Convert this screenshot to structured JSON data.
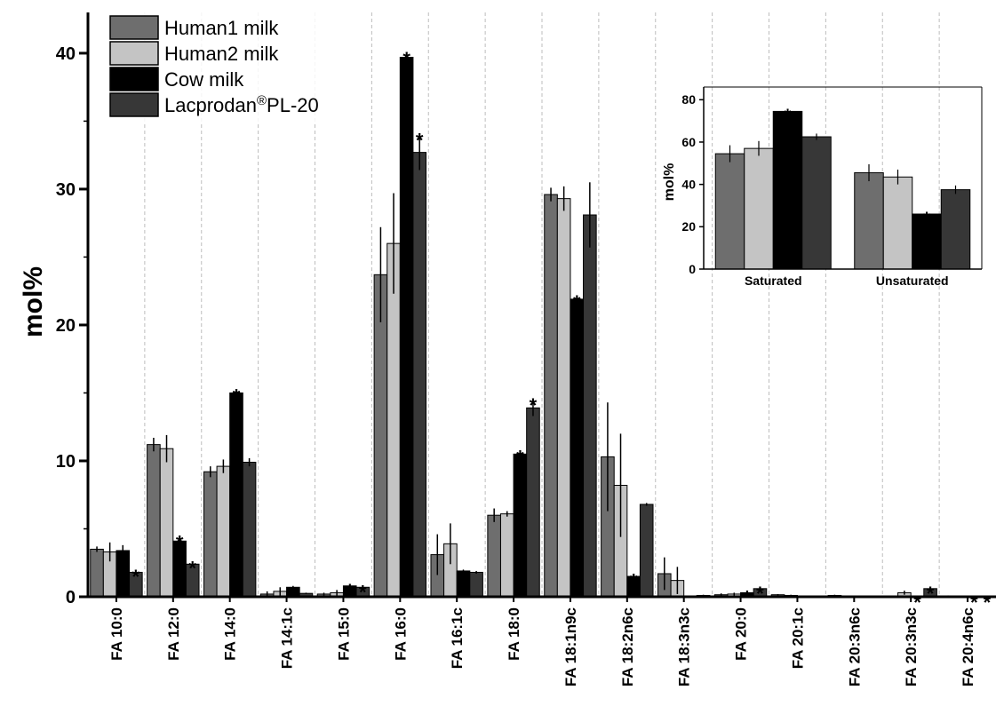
{
  "chart_data": [
    {
      "type": "bar",
      "ylabel": "mol%",
      "xlabel": "",
      "ylim": [
        0,
        43
      ],
      "yticks": [
        0,
        10,
        20,
        30,
        40
      ],
      "grid": "vertical dashed",
      "legend_position": "top-left",
      "categories": [
        "FA 10:0",
        "FA 12:0",
        "FA 14:0",
        "FA 14:1c",
        "FA 15:0",
        "FA 16:0",
        "FA 16:1c",
        "FA 18:0",
        "FA 18:1n9c",
        "FA 18:2n6c",
        "FA 18:3n3c",
        "FA 20:0",
        "FA 20:1c",
        "FA 20:3n6c",
        "FA 20:3n3c",
        "FA 20:4n6c"
      ],
      "series": [
        {
          "name": "Human1 milk",
          "color": "#6e6e6e",
          "values": [
            3.5,
            11.2,
            9.2,
            0.2,
            0.2,
            23.7,
            3.1,
            6.0,
            29.6,
            10.3,
            1.7,
            0.15,
            0.15,
            0.1,
            0.0,
            0.05
          ],
          "errors": [
            0.2,
            0.5,
            0.4,
            0.2,
            0.1,
            3.5,
            1.5,
            0.5,
            0.5,
            4.0,
            1.2,
            0.1,
            0.05,
            0.05,
            0.0,
            0.05
          ],
          "significant": [
            false,
            false,
            false,
            false,
            false,
            false,
            false,
            false,
            false,
            false,
            false,
            false,
            false,
            false,
            false,
            false
          ]
        },
        {
          "name": "Human2 milk",
          "color": "#c4c4c4",
          "values": [
            3.3,
            10.9,
            9.6,
            0.4,
            0.3,
            26.0,
            3.9,
            6.1,
            29.3,
            8.2,
            1.2,
            0.2,
            0.1,
            0.0,
            0.3,
            0.0
          ],
          "errors": [
            0.7,
            1.0,
            0.5,
            0.3,
            0.2,
            3.7,
            1.5,
            0.2,
            0.9,
            3.8,
            1.0,
            0.1,
            0.05,
            0.0,
            0.15,
            0.0
          ],
          "significant": [
            false,
            false,
            false,
            false,
            false,
            false,
            false,
            false,
            false,
            false,
            false,
            false,
            false,
            false,
            false,
            false
          ]
        },
        {
          "name": "Cow milk",
          "color": "#000000",
          "values": [
            3.4,
            4.1,
            15.0,
            0.7,
            0.8,
            39.7,
            1.9,
            10.5,
            21.9,
            1.5,
            0.0,
            0.3,
            0.0,
            0.0,
            0.0,
            0.0
          ],
          "errors": [
            0.4,
            0.3,
            0.2,
            0.1,
            0.05,
            0.3,
            0.1,
            0.2,
            0.2,
            0.1,
            0.0,
            0.05,
            0.0,
            0.0,
            0.0,
            0.0
          ],
          "significant": [
            false,
            true,
            true,
            false,
            true,
            true,
            false,
            true,
            true,
            true,
            false,
            true,
            false,
            false,
            true,
            true
          ]
        },
        {
          "name": "Lacprodan®PL-20",
          "color": "#373737",
          "values": [
            1.8,
            2.4,
            9.9,
            0.25,
            0.7,
            32.7,
            1.8,
            13.9,
            28.1,
            6.8,
            0.1,
            0.6,
            0.0,
            0.0,
            0.6,
            0.0
          ],
          "errors": [
            0.1,
            0.1,
            0.3,
            0.05,
            0.05,
            1.3,
            0.1,
            0.6,
            2.4,
            0.1,
            0.05,
            0.05,
            0.0,
            0.0,
            0.05,
            0.0
          ],
          "significant": [
            true,
            true,
            false,
            false,
            true,
            true,
            false,
            true,
            false,
            false,
            false,
            true,
            false,
            false,
            true,
            true
          ]
        }
      ]
    },
    {
      "type": "bar",
      "ylabel": "mol%",
      "xlabel": "",
      "ylim": [
        0,
        86
      ],
      "yticks": [
        0,
        20,
        40,
        60,
        80
      ],
      "legend_position": "none",
      "categories": [
        "Saturated",
        "Unsaturated"
      ],
      "series": [
        {
          "name": "Human1 milk",
          "color": "#6e6e6e",
          "values": [
            54.5,
            45.5
          ],
          "errors": [
            4.0,
            4.0
          ],
          "significant": [
            false,
            false
          ]
        },
        {
          "name": "Human2 milk",
          "color": "#c4c4c4",
          "values": [
            57.0,
            43.5
          ],
          "errors": [
            3.5,
            3.5
          ],
          "significant": [
            false,
            false
          ]
        },
        {
          "name": "Cow milk",
          "color": "#000000",
          "values": [
            74.5,
            26.0
          ],
          "errors": [
            0.3,
            0.3
          ],
          "significant": [
            true,
            true
          ]
        },
        {
          "name": "Lacprodan®PL-20",
          "color": "#373737",
          "values": [
            62.5,
            37.5
          ],
          "errors": [
            1.5,
            2.0
          ],
          "significant": [
            false,
            false
          ]
        }
      ]
    }
  ],
  "legend": {
    "items": [
      {
        "label": "Human1 milk",
        "color": "#6e6e6e"
      },
      {
        "label": "Human2 milk",
        "color": "#c4c4c4"
      },
      {
        "label": "Cow milk",
        "color": "#000000"
      },
      {
        "label": "Lacprodan",
        "superscript": "®",
        "suffix": "PL-20",
        "color": "#373737"
      }
    ]
  },
  "significance_marker": "*"
}
